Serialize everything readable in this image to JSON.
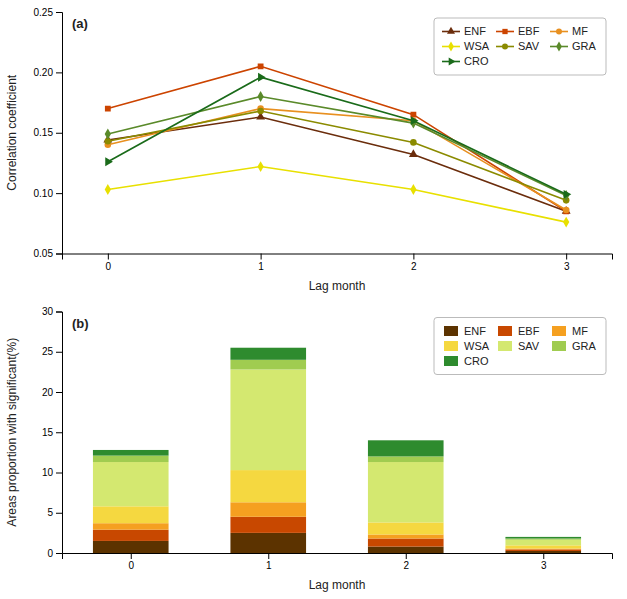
{
  "chart_data": [
    {
      "type": "line",
      "annotations": [
        "(a)"
      ],
      "x_label": "Lag month",
      "y_label": "Correlation coefficient",
      "x": [
        0,
        1,
        2,
        3
      ],
      "xlim": [
        -0.3,
        3.3
      ],
      "xticks": [
        0,
        1,
        2,
        3
      ],
      "ylim": [
        0.05,
        0.25
      ],
      "yticks": [
        0.05,
        {
          "value": 0.1,
          "label": "0.10"
        },
        0.15,
        {
          "value": 0.2,
          "label": "0.20"
        },
        0.25
      ],
      "grid": false,
      "legend": "upper right",
      "series": [
        {
          "name": "ENF",
          "color": "#6b2d0c",
          "marker": "triangle-up",
          "values": [
            0.144,
            0.163,
            0.132,
            0.085
          ]
        },
        {
          "name": "EBF",
          "color": "#cc4400",
          "marker": "square",
          "values": [
            0.17,
            0.205,
            0.165,
            0.085
          ]
        },
        {
          "name": "MF",
          "color": "#e89020",
          "marker": "circle",
          "values": [
            0.14,
            0.17,
            0.16,
            0.086
          ]
        },
        {
          "name": "WSA",
          "color": "#e8e000",
          "marker": "diamond",
          "values": [
            0.103,
            0.122,
            0.103,
            0.076
          ]
        },
        {
          "name": "SAV",
          "color": "#8b8b00",
          "marker": "circle",
          "values": [
            0.143,
            0.168,
            0.142,
            0.094
          ]
        },
        {
          "name": "GRA",
          "color": "#5a8a2a",
          "marker": "diamond",
          "values": [
            0.149,
            0.18,
            0.158,
            0.098
          ]
        },
        {
          "name": "CRO",
          "color": "#1a6b1a",
          "marker": "triangle-right",
          "values": [
            0.126,
            0.196,
            0.16,
            0.099
          ]
        }
      ]
    },
    {
      "type": "bar",
      "stacked": true,
      "annotations": [
        "(b)"
      ],
      "x_label": "Lag month",
      "y_label": "Areas proportion with significant(%)",
      "x": [
        0,
        1,
        2,
        3
      ],
      "xlim": [
        -0.5,
        3.5
      ],
      "xticks": [
        0,
        1,
        2,
        3
      ],
      "ylim": [
        0,
        30
      ],
      "yticks": [
        0,
        5,
        10,
        15,
        20,
        25,
        30
      ],
      "grid": false,
      "legend": "upper right",
      "series": [
        {
          "name": "ENF",
          "color": "#5c3300",
          "values": [
            1.5,
            2.5,
            0.8,
            0.25
          ]
        },
        {
          "name": "EBF",
          "color": "#c84800",
          "values": [
            1.4,
            2.0,
            1.0,
            0.2
          ]
        },
        {
          "name": "MF",
          "color": "#f5a020",
          "values": [
            0.8,
            1.8,
            0.5,
            0.1
          ]
        },
        {
          "name": "WSA",
          "color": "#f5d840",
          "values": [
            2.1,
            4.0,
            1.5,
            0.4
          ]
        },
        {
          "name": "SAV",
          "color": "#d4e870",
          "values": [
            5.5,
            12.5,
            7.5,
            0.7
          ]
        },
        {
          "name": "GRA",
          "color": "#a0cc50",
          "values": [
            0.8,
            1.2,
            0.7,
            0.15
          ]
        },
        {
          "name": "CRO",
          "color": "#2e8b2e",
          "values": [
            0.7,
            1.5,
            2.0,
            0.2
          ]
        }
      ]
    }
  ]
}
